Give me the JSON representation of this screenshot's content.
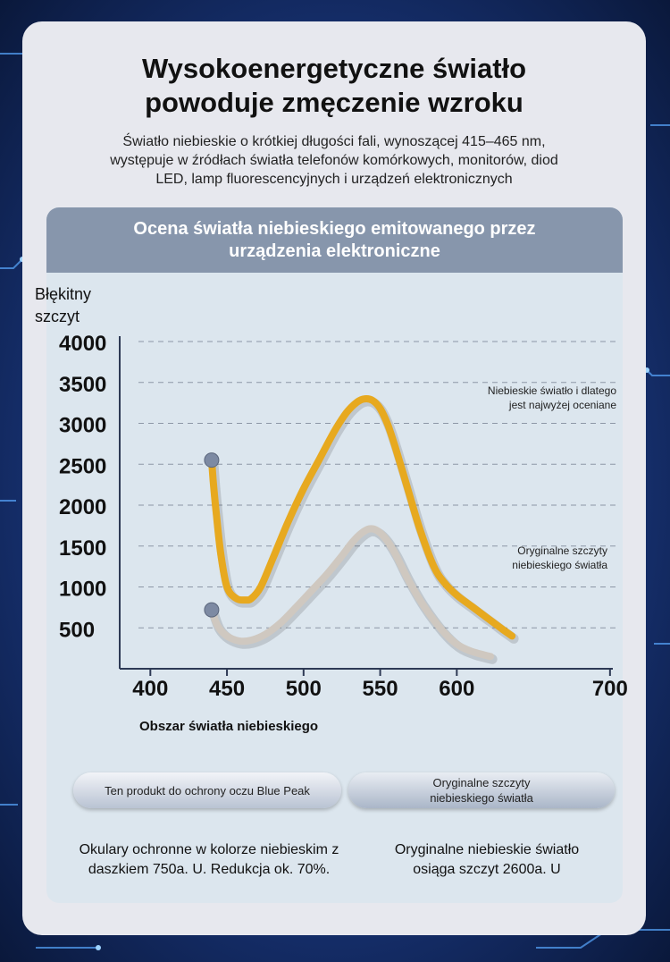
{
  "header": {
    "title_line1": "Wysokoenergetyczne światło",
    "title_line2": "powoduje zmęczenie wzroku",
    "subtitle_line1": "Światło niebieskie o krótkiej długości fali, wynoszącej 415–465 nm,",
    "subtitle_line2": "występuje w źródłach światła telefonów komórkowych, monitorów, diod",
    "subtitle_line3": "LED, lamp fluorescencyjnych i urządzeń elektronicznych"
  },
  "panel": {
    "heading_line1": "Ocena światła niebieskiego emitowanego przez",
    "heading_line2": "urządzenia elektroniczne"
  },
  "annotations": {
    "top_line1": "Niebieskie światło i dlatego",
    "top_line2": "jest najwyżej oceniane",
    "mid_line1": "Oryginalne szczyty",
    "mid_line2": "niebieskiego światła"
  },
  "legend": {
    "left_label": "Ten produkt do ochrony oczu Blue Peak",
    "right_label_line1": "Oryginalne szczyty",
    "right_label_line2": "niebieskiego światła"
  },
  "descriptions": {
    "left_line1": "Okulary ochronne w kolorze niebieskim z",
    "left_line2": "daszkiem 750a. U. Redukcja ok. 70%.",
    "right_line1": "Oryginalne niebieskie światło",
    "right_line2": "osiąga szczyt 2600a. U"
  },
  "colors": {
    "original_series": "#e7a91f",
    "protected_series": "#cfc8c0",
    "marker": "#7d8aa3",
    "grid": "#8d97a6",
    "axis": "#2e3a55"
  },
  "chart_data": {
    "type": "line",
    "ylabel_line1": "Błękitny",
    "ylabel_line2": "szczyt",
    "xlabel": "Obszar światła niebieskiego",
    "xlim": [
      380,
      710
    ],
    "ylim": [
      0,
      4000
    ],
    "x_ticks": [
      400,
      450,
      500,
      550,
      600,
      700
    ],
    "y_ticks": [
      500,
      1000,
      1500,
      2000,
      2500,
      3000,
      3500,
      4000
    ],
    "grid_y": true,
    "series": [
      {
        "name": "Oryginalne szczyty niebieskiego światła",
        "x": [
          440,
          441,
          443,
          446,
          450,
          456,
          462,
          466,
          472,
          480,
          490,
          500,
          510,
          520,
          528,
          535,
          540,
          545,
          550,
          555,
          560,
          568,
          576,
          585,
          592,
          600,
          610,
          620,
          630,
          636
        ],
        "y": [
          2550,
          2300,
          1900,
          1400,
          1000,
          860,
          840,
          860,
          1000,
          1350,
          1800,
          2200,
          2550,
          2900,
          3130,
          3260,
          3300,
          3280,
          3180,
          2980,
          2700,
          2200,
          1700,
          1250,
          1050,
          900,
          760,
          620,
          480,
          400
        ]
      },
      {
        "name": "Ten produkt do ochrony oczu Blue Peak",
        "x": [
          440,
          444,
          450,
          458,
          466,
          475,
          485,
          495,
          505,
          515,
          525,
          532,
          538,
          543,
          548,
          554,
          560,
          568,
          578,
          590,
          600,
          610,
          622
        ],
        "y": [
          720,
          520,
          400,
          340,
          350,
          420,
          560,
          750,
          950,
          1150,
          1380,
          1550,
          1660,
          1710,
          1690,
          1580,
          1400,
          1100,
          780,
          480,
          300,
          210,
          150
        ]
      }
    ]
  }
}
